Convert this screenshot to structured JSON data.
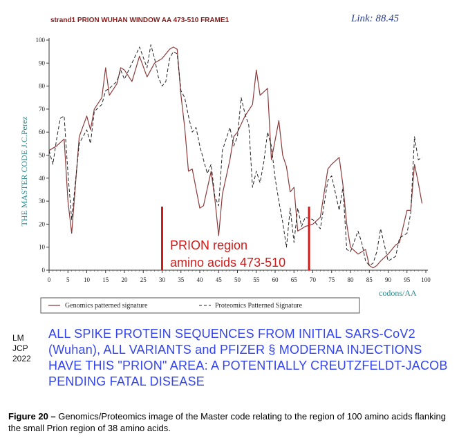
{
  "chart_data": {
    "type": "line",
    "title": "strand1 PRION WUHAN WINDOW AA 473-510 FRAME1",
    "link_label": "Link: 88.45",
    "ylabel": "THE MASTER CODE J.C.Perez",
    "xlabel": "codons/AA",
    "xlim": [
      0,
      100
    ],
    "ylim": [
      0,
      100
    ],
    "x_ticks": [
      0,
      5,
      10,
      15,
      20,
      25,
      30,
      35,
      40,
      45,
      50,
      55,
      60,
      65,
      70,
      75,
      80,
      85,
      90,
      95,
      100
    ],
    "y_ticks": [
      0,
      10,
      20,
      30,
      40,
      50,
      60,
      70,
      80,
      90,
      100
    ],
    "series": [
      {
        "name": "Genomics patterned signature",
        "color": "#8b3a3a",
        "style": "solid",
        "x": [
          0,
          2,
          4,
          5,
          6,
          8,
          10,
          11,
          12,
          14,
          15,
          16,
          18,
          19,
          20,
          22,
          24,
          26,
          28,
          30,
          31,
          32,
          33,
          34,
          35,
          36,
          37,
          38,
          40,
          41,
          43,
          44,
          45,
          46,
          48,
          49,
          50,
          52,
          54,
          55,
          56,
          58,
          59,
          61,
          62,
          63,
          64,
          65,
          66,
          67,
          68,
          70,
          72,
          74,
          75,
          77,
          78,
          79,
          80,
          82,
          84,
          85,
          86,
          87,
          88,
          90,
          92,
          93,
          95,
          96,
          97,
          98,
          99
        ],
        "values": [
          52,
          54,
          57,
          30,
          16,
          58,
          67,
          61,
          70,
          75,
          88,
          76,
          81,
          88,
          87,
          82,
          93,
          84,
          90,
          92,
          94,
          96,
          97,
          96,
          76,
          62,
          43,
          44,
          27,
          28,
          43,
          31,
          15,
          33,
          48,
          58,
          60,
          67,
          72,
          87,
          76,
          79,
          48,
          65,
          50,
          45,
          34,
          36,
          17,
          18,
          19,
          20,
          23,
          44,
          46,
          49,
          37,
          20,
          10,
          7,
          9,
          2,
          1,
          2,
          4,
          7,
          11,
          12,
          26,
          26,
          46,
          38,
          29
        ]
      },
      {
        "name": "Proteomics Patterned Signature",
        "color": "#222222",
        "style": "dashed",
        "x": [
          0,
          1,
          2,
          3,
          4,
          5,
          6,
          8,
          10,
          11,
          12,
          14,
          15,
          16,
          18,
          19,
          20,
          22,
          24,
          26,
          27,
          28,
          29,
          30,
          31,
          32,
          33,
          34,
          35,
          36,
          37,
          38,
          39,
          40,
          41,
          42,
          43,
          44,
          45,
          46,
          48,
          49,
          50,
          51,
          52,
          53,
          54,
          55,
          56,
          57,
          58,
          59,
          60,
          61,
          62,
          63,
          64,
          65,
          66,
          67,
          68,
          70,
          72,
          74,
          75,
          77,
          78,
          79,
          80,
          82,
          83,
          84,
          85,
          86,
          87,
          88,
          90,
          92,
          93,
          95,
          96,
          97,
          98,
          99
        ],
        "values": [
          52,
          46,
          57,
          66,
          67,
          42,
          22,
          55,
          61,
          55,
          69,
          72,
          78,
          79,
          82,
          87,
          83,
          90,
          97,
          88,
          98,
          92,
          84,
          80,
          82,
          92,
          95,
          94,
          78,
          75,
          67,
          60,
          62,
          54,
          48,
          42,
          46,
          32,
          28,
          52,
          62,
          54,
          58,
          75,
          68,
          63,
          36,
          43,
          38,
          47,
          60,
          54,
          40,
          30,
          21,
          10,
          27,
          12,
          27,
          19,
          23,
          22,
          18,
          39,
          41,
          26,
          36,
          9,
          8,
          17,
          12,
          4,
          2,
          3,
          8,
          18,
          4,
          6,
          14,
          16,
          25,
          58,
          48,
          49
        ]
      }
    ],
    "annotations": {
      "prion_region_start": 30,
      "prion_region_end": 69,
      "prion_line1": "PRION region",
      "prion_line2": "amino acids 473-510",
      "prion_color": "#d11a1a"
    },
    "legend_position": "bottom"
  },
  "credit": {
    "line1": "LM",
    "line2": "JCP",
    "line3": "2022"
  },
  "warning_text": "ALL SPIKE PROTEIN SEQUENCES FROM INITIAL SARS-CoV2 (Wuhan), ALL VARIANTS and PFIZER § MODERNA INJECTIONS HAVE THIS \"PRION\" AREA: A POTENTIALLY CREUTZFELDT-JACOB PENDING FATAL DISEASE",
  "caption": {
    "label": "Figure 20 –",
    "text": " Genomics/Proteomics image of the Master code relating to the region of 100 amino acids flanking the small Prion region of 38 amino acids."
  }
}
